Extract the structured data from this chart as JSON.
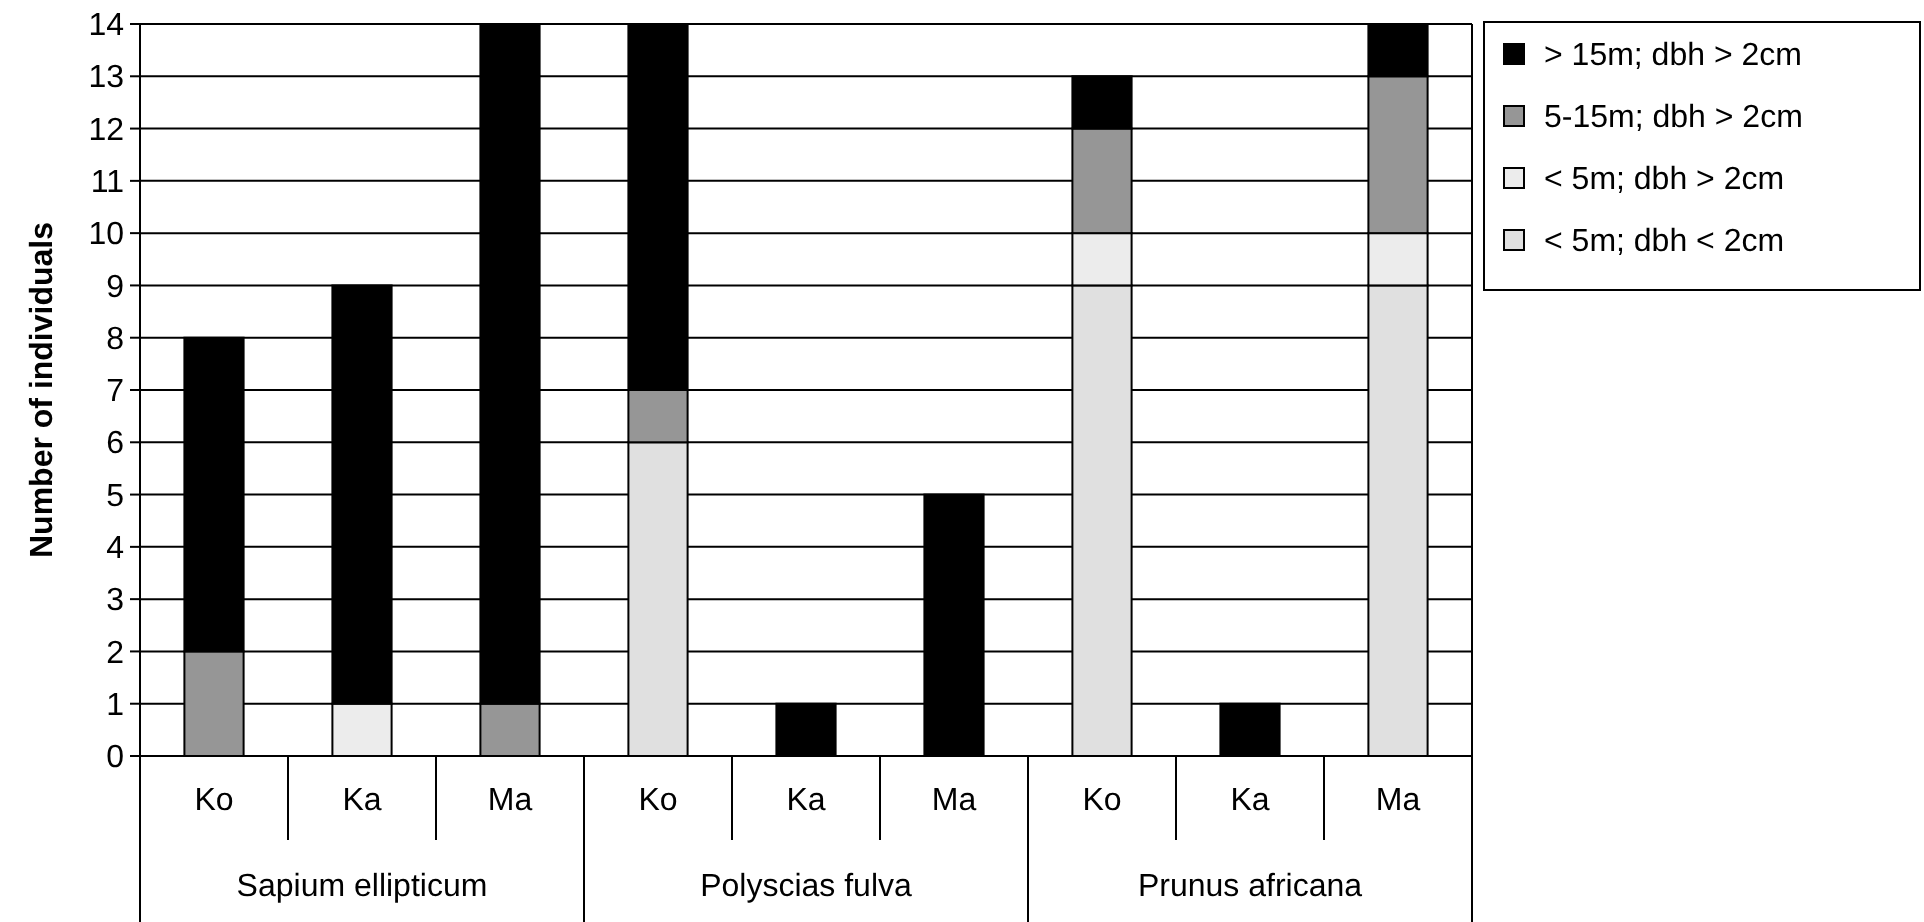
{
  "chart_data": {
    "type": "bar",
    "stacked": true,
    "ylabel": "Number of individuals",
    "categories": [
      "Ko",
      "Ka",
      "Ma",
      "Ko",
      "Ka",
      "Ma",
      "Ko",
      "Ka",
      "Ma"
    ],
    "annotations": [
      "Sapium ellipticum",
      "Polyscias fulva",
      "Prunus africana"
    ],
    "series": [
      {
        "name": "< 5m; dbh < 2cm",
        "color": "#e0e0e0",
        "values": [
          0,
          0,
          0,
          6,
          0,
          0,
          9,
          0,
          9
        ]
      },
      {
        "name": "< 5m; dbh > 2cm",
        "color": "#ececec",
        "values": [
          0,
          1,
          0,
          0,
          0,
          0,
          1,
          0,
          1
        ]
      },
      {
        "name": "5-15m; dbh > 2cm",
        "color": "#969696",
        "values": [
          2,
          0,
          1,
          1,
          0,
          0,
          2,
          0,
          3
        ]
      },
      {
        "name": "> 15m; dbh > 2cm",
        "color": "#000000",
        "values": [
          6,
          8,
          13,
          7,
          1,
          5,
          1,
          1,
          1
        ]
      }
    ],
    "ylim": [
      0,
      14
    ],
    "yticks": [
      0,
      1,
      2,
      3,
      4,
      5,
      6,
      7,
      8,
      9,
      10,
      11,
      12,
      13,
      14
    ],
    "grid": "y",
    "legend": "right"
  }
}
